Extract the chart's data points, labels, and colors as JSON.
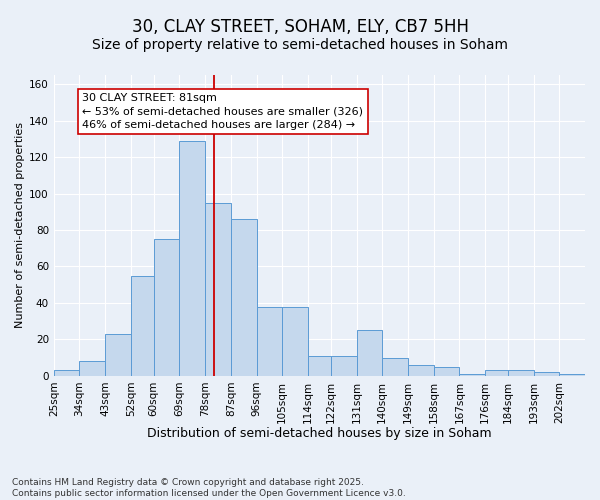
{
  "title1": "30, CLAY STREET, SOHAM, ELY, CB7 5HH",
  "title2": "Size of property relative to semi-detached houses in Soham",
  "xlabel": "Distribution of semi-detached houses by size in Soham",
  "ylabel": "Number of semi-detached properties",
  "bin_labels": [
    "25sqm",
    "34sqm",
    "43sqm",
    "52sqm",
    "60sqm",
    "69sqm",
    "78sqm",
    "87sqm",
    "96sqm",
    "105sqm",
    "114sqm",
    "122sqm",
    "131sqm",
    "140sqm",
    "149sqm",
    "158sqm",
    "167sqm",
    "176sqm",
    "184sqm",
    "193sqm",
    "202sqm"
  ],
  "bar_heights": [
    3,
    8,
    23,
    55,
    75,
    129,
    95,
    86,
    38,
    38,
    11,
    11,
    25,
    10,
    6,
    5,
    1,
    3,
    3,
    2,
    1
  ],
  "bin_edges": [
    25,
    34,
    43,
    52,
    60,
    69,
    78,
    87,
    96,
    105,
    114,
    122,
    131,
    140,
    149,
    158,
    167,
    176,
    184,
    193,
    202,
    211
  ],
  "bar_color": "#c5d8ed",
  "bar_edge_color": "#5b9bd5",
  "vline_x": 81,
  "vline_color": "#cc0000",
  "annotation_text": "30 CLAY STREET: 81sqm\n← 53% of semi-detached houses are smaller (326)\n46% of semi-detached houses are larger (284) →",
  "annotation_box_color": "#ffffff",
  "annotation_box_edge": "#cc0000",
  "ylim": [
    0,
    165
  ],
  "yticks": [
    0,
    20,
    40,
    60,
    80,
    100,
    120,
    140,
    160
  ],
  "footer_text": "Contains HM Land Registry data © Crown copyright and database right 2025.\nContains public sector information licensed under the Open Government Licence v3.0.",
  "bg_color": "#eaf0f8",
  "plot_bg_color": "#eaf0f8",
  "grid_color": "#ffffff",
  "title1_fontsize": 12,
  "title2_fontsize": 10,
  "xlabel_fontsize": 9,
  "ylabel_fontsize": 8,
  "tick_fontsize": 7.5,
  "footer_fontsize": 6.5,
  "annotation_fontsize": 8
}
